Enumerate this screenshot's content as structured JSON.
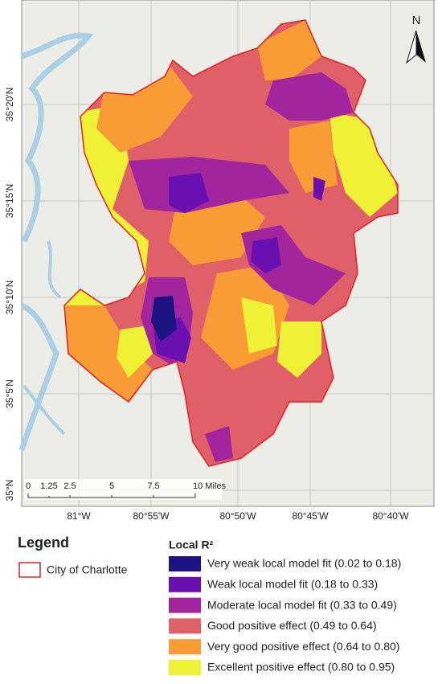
{
  "map": {
    "north": "N",
    "lat_labels": [
      "35°20'N",
      "35°15'N",
      "35°10'N",
      "35°5'N",
      "35°N"
    ],
    "lon_labels": [
      "81°W",
      "80°55'W",
      "80°50'W",
      "80°45'W",
      "80°40'W"
    ],
    "scale_bar": [
      "0",
      "1.25",
      "2.5",
      "5",
      "7.5",
      "10 Miles"
    ]
  },
  "legend": {
    "title": "Legend",
    "city_label": "City of Charlotte",
    "city_color": "#e02020",
    "classes_title": "Local R²",
    "classes": [
      {
        "label": "Very weak local model fit (0.02 to 0.18)",
        "color": "#1c1480"
      },
      {
        "label": "Weak local model fit (0.18 to 0.33)",
        "color": "#6a0fb0"
      },
      {
        "label": "Moderate local model fit (0.33 to 0.49)",
        "color": "#a3259e"
      },
      {
        "label": "Good positive effect (0.49 to 0.64)",
        "color": "#e0606a"
      },
      {
        "label": "Very good positive effect (0.64 to 0.80)",
        "color": "#f99c36"
      },
      {
        "label": "Excellent positive effect (0.80 to 0.95)",
        "color": "#eff234"
      }
    ]
  }
}
